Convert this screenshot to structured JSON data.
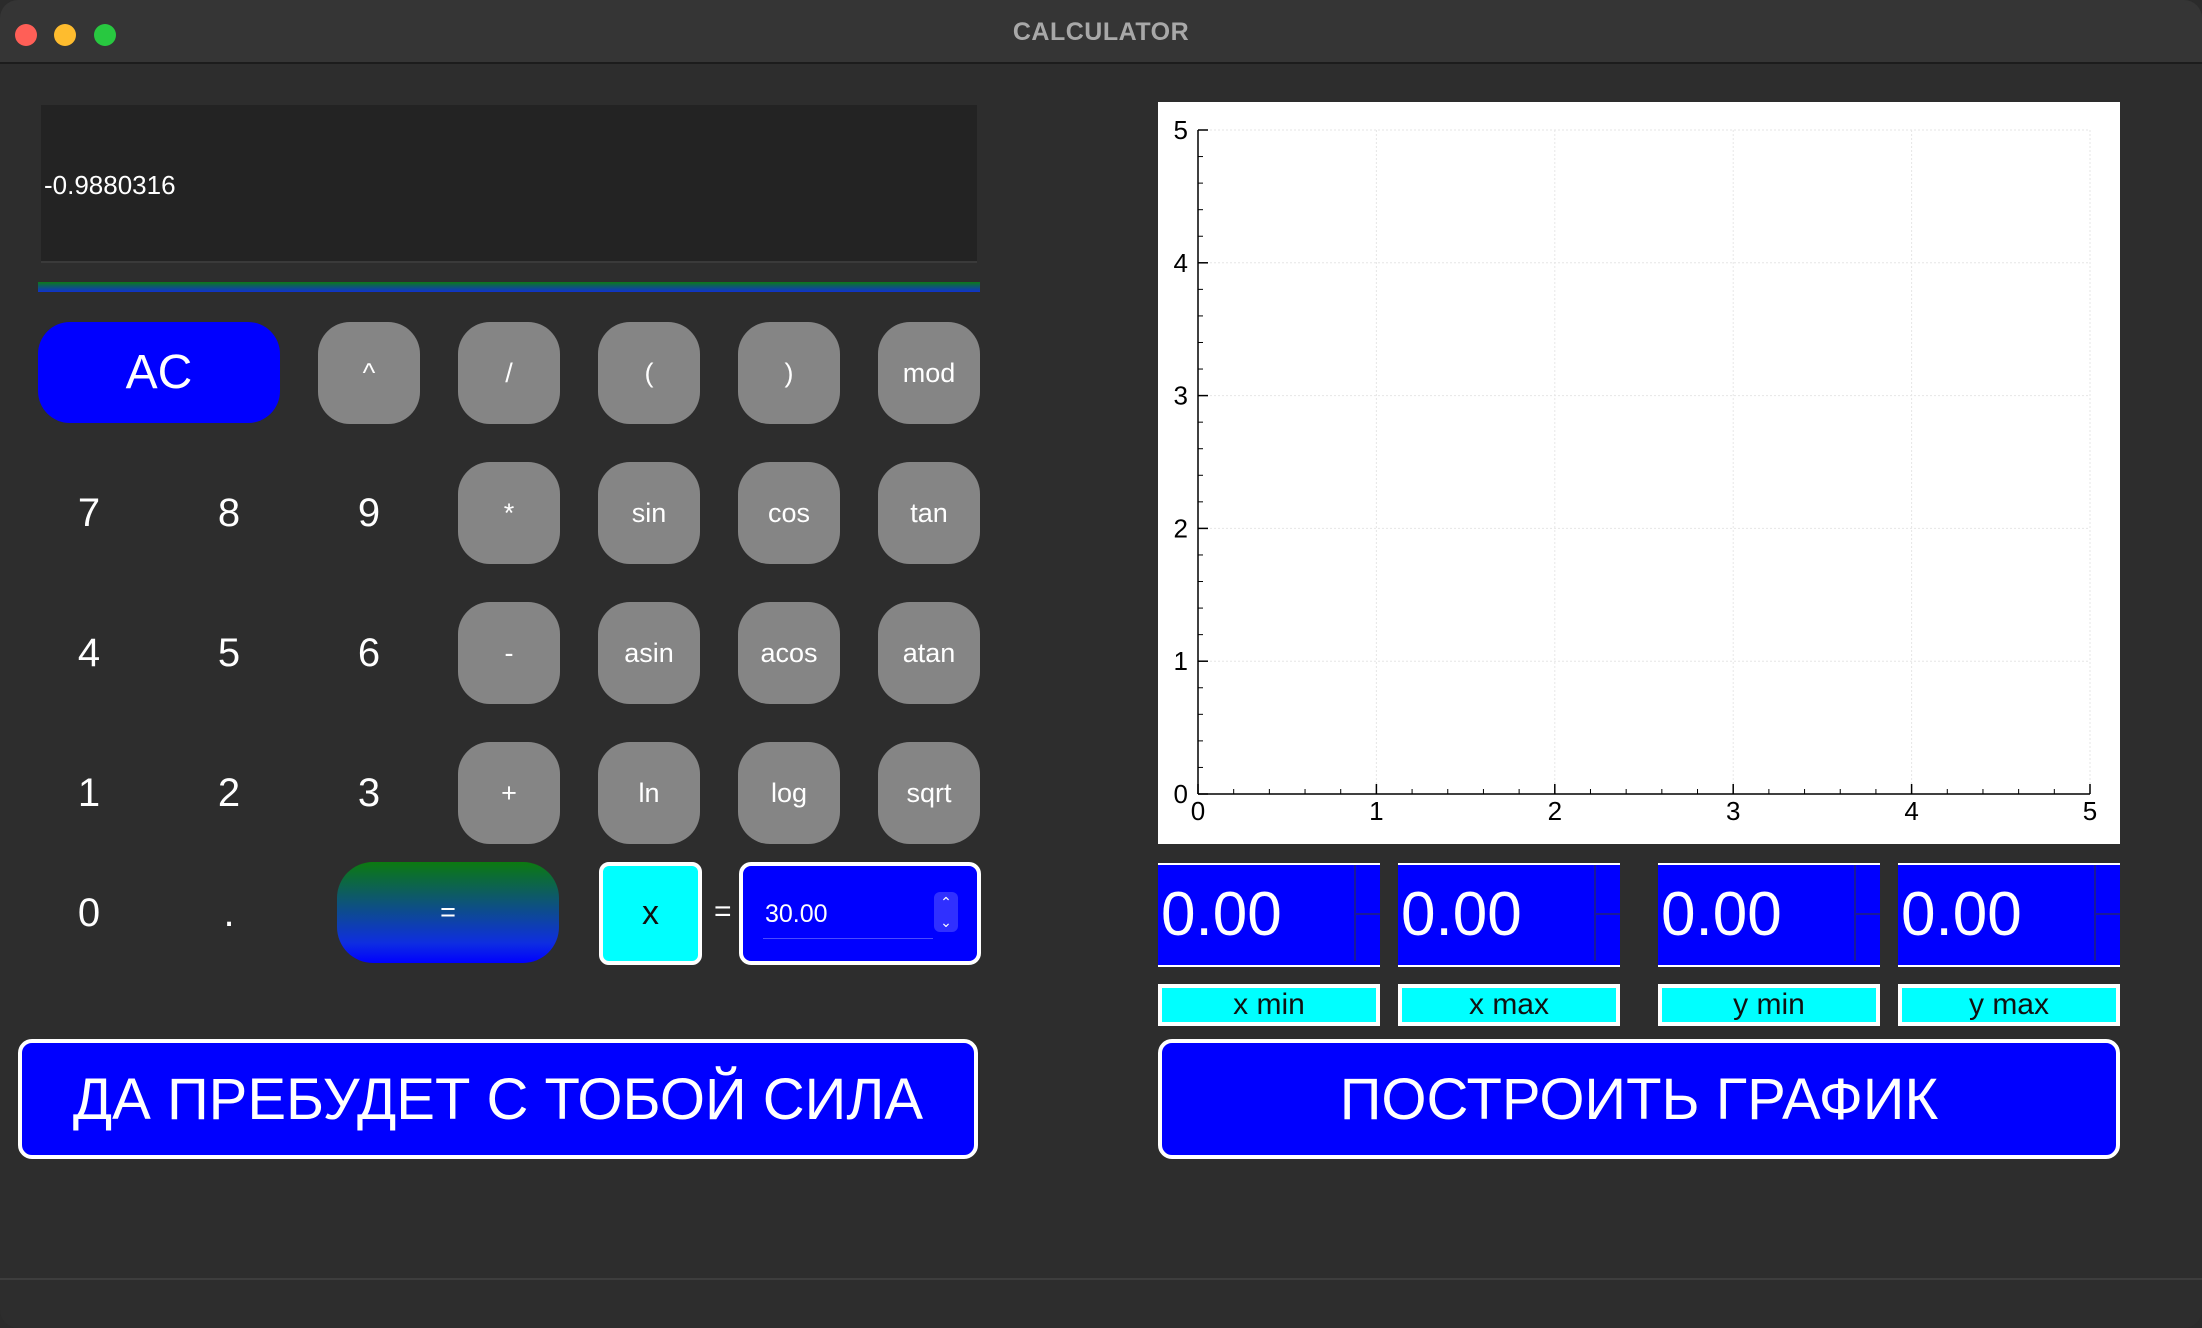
{
  "window": {
    "title": "CALCULATOR"
  },
  "display": {
    "value": "-0.9880316"
  },
  "keypad": {
    "ac": "AC",
    "pow": "^",
    "div": "/",
    "lparen": "(",
    "rparen": ")",
    "mod": "mod",
    "d7": "7",
    "d8": "8",
    "d9": "9",
    "mul": "*",
    "sin": "sin",
    "cos": "cos",
    "tan": "tan",
    "d4": "4",
    "d5": "5",
    "d6": "6",
    "sub": "-",
    "asin": "asin",
    "acos": "acos",
    "atan": "atan",
    "d1": "1",
    "d2": "2",
    "d3": "3",
    "add": "+",
    "ln": "ln",
    "log": "log",
    "sqrt": "sqrt",
    "d0": "0",
    "dot": ".",
    "equals": "=",
    "x": "x",
    "x_eq": "=",
    "x_value": "30.00"
  },
  "force_button": "ДА ПРЕБУДЕТ С ТОБОЙ СИЛА",
  "plot_button": "ПОСТРОИТЬ ГРАФИК",
  "ranges": [
    {
      "value": "0.00",
      "label": "x min"
    },
    {
      "value": "0.00",
      "label": "x max"
    },
    {
      "value": "0.00",
      "label": "y min"
    },
    {
      "value": "0.00",
      "label": "y max"
    }
  ],
  "chart_data": {
    "type": "line",
    "series": [],
    "xlim": [
      0,
      5
    ],
    "ylim": [
      0,
      5
    ],
    "xticks": [
      "0",
      "1",
      "2",
      "3",
      "4",
      "5"
    ],
    "yticks": [
      "0",
      "1",
      "2",
      "3",
      "4",
      "5"
    ],
    "grid": true,
    "title": "",
    "xlabel": "",
    "ylabel": ""
  }
}
